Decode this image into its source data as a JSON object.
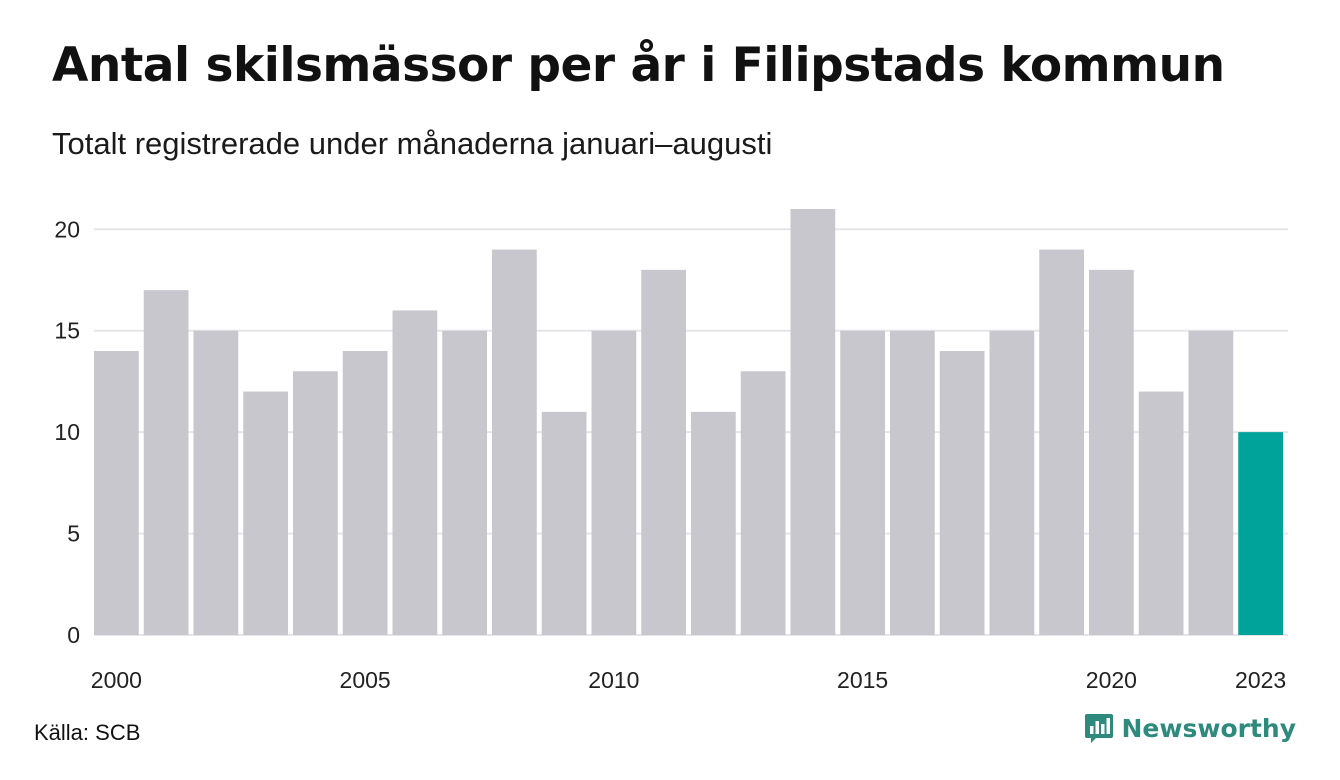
{
  "header": {
    "title": "Antal skilsmässor per år i Filipstads kommun",
    "subtitle": "Totalt registrerade under månaderna januari–augusti"
  },
  "footer": {
    "source": "Källa: SCB",
    "brand": "Newsworthy",
    "brand_icon": "newsworthy-logo-icon"
  },
  "colors": {
    "bar": "#c8c7ce",
    "highlight": "#00a399",
    "grid": "#e6e6ea",
    "brand": "#2d8a7d"
  },
  "chart_data": {
    "type": "bar",
    "title": "Antal skilsmässor per år i Filipstads kommun",
    "subtitle": "Totalt registrerade under månaderna januari–augusti",
    "xlabel": "",
    "ylabel": "",
    "categories": [
      "2000",
      "2001",
      "2002",
      "2003",
      "2004",
      "2005",
      "2006",
      "2007",
      "2008",
      "2009",
      "2010",
      "2011",
      "2012",
      "2013",
      "2014",
      "2015",
      "2016",
      "2017",
      "2018",
      "2019",
      "2020",
      "2021",
      "2022",
      "2023"
    ],
    "values": [
      14,
      17,
      15,
      12,
      13,
      14,
      16,
      15,
      19,
      11,
      15,
      18,
      11,
      13,
      21,
      15,
      15,
      14,
      15,
      19,
      18,
      12,
      15,
      10
    ],
    "highlight_category": "2023",
    "x_tick_labels": [
      "2000",
      "2005",
      "2010",
      "2015",
      "2020",
      "2023"
    ],
    "y_ticks": [
      0,
      5,
      10,
      15,
      20
    ],
    "ylim": [
      0,
      21
    ],
    "grid": true,
    "legend": "none"
  }
}
